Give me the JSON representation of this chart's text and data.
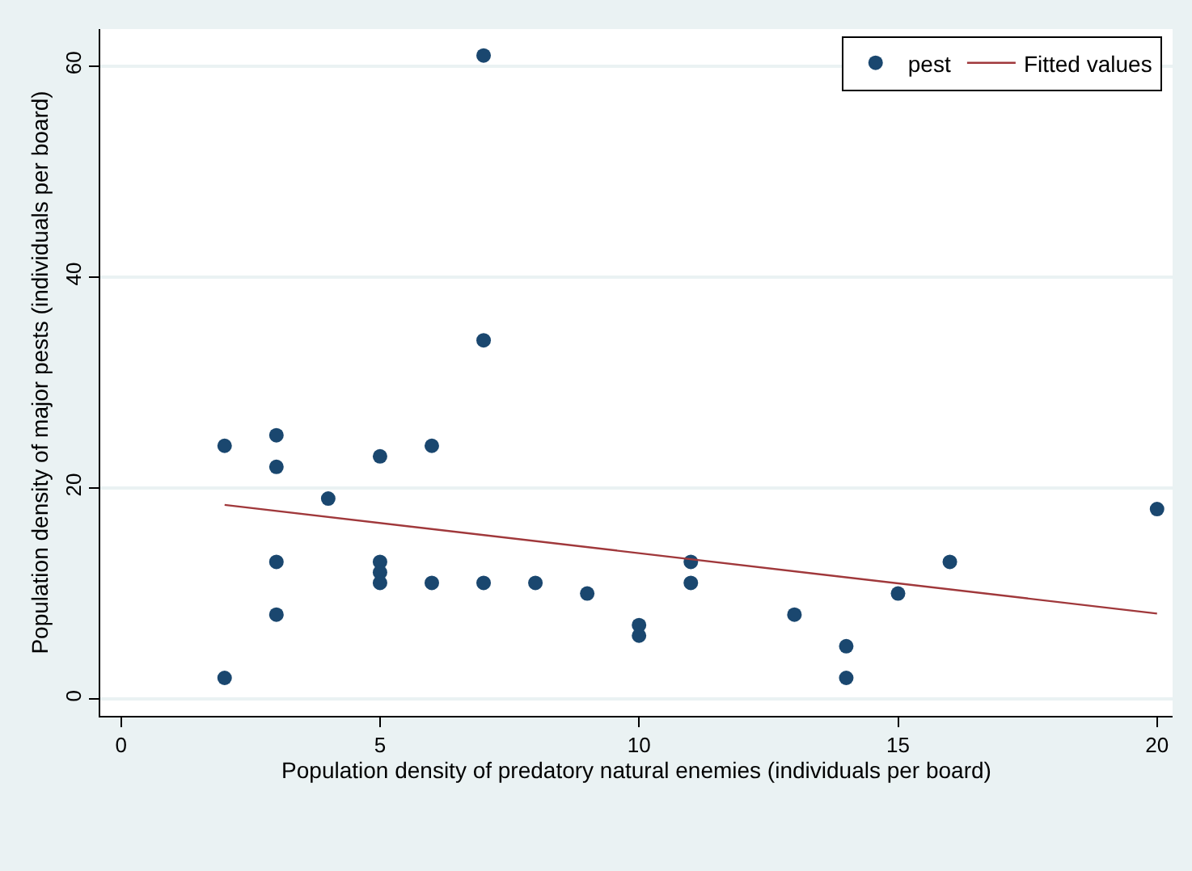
{
  "chart_data": {
    "type": "scatter",
    "xlabel": "Population density of predatory natural enemies (individuals per board)",
    "ylabel": "Population density of major pests (individuals per board)",
    "xlim": [
      -0.4,
      20.3
    ],
    "ylim": [
      -1.6,
      63.5
    ],
    "xticks": [
      0,
      5,
      10,
      15,
      20
    ],
    "yticks": [
      0,
      20,
      40,
      60
    ],
    "grid": "y",
    "legend": "top right",
    "series": [
      {
        "name": "pest",
        "marker": "circle",
        "color": "#1a476f",
        "x": [
          2,
          2,
          3,
          3,
          3,
          3,
          4,
          5,
          5,
          5,
          5,
          6,
          6,
          7,
          7,
          7,
          8,
          9,
          10,
          10,
          11,
          11,
          13,
          14,
          14,
          15,
          16,
          20
        ],
        "values": [
          24,
          2,
          25,
          22,
          13,
          8,
          19,
          23,
          13,
          12,
          11,
          24,
          11,
          61,
          34,
          11,
          11,
          10,
          7,
          6,
          13,
          11,
          8,
          5,
          2,
          10,
          13,
          18
        ]
      },
      {
        "name": "Fitted values",
        "type": "line",
        "marker": "none",
        "line_style": "solid",
        "color": "#a0383b",
        "x": [
          2,
          20
        ],
        "values": [
          18.4,
          8.1
        ]
      }
    ]
  }
}
